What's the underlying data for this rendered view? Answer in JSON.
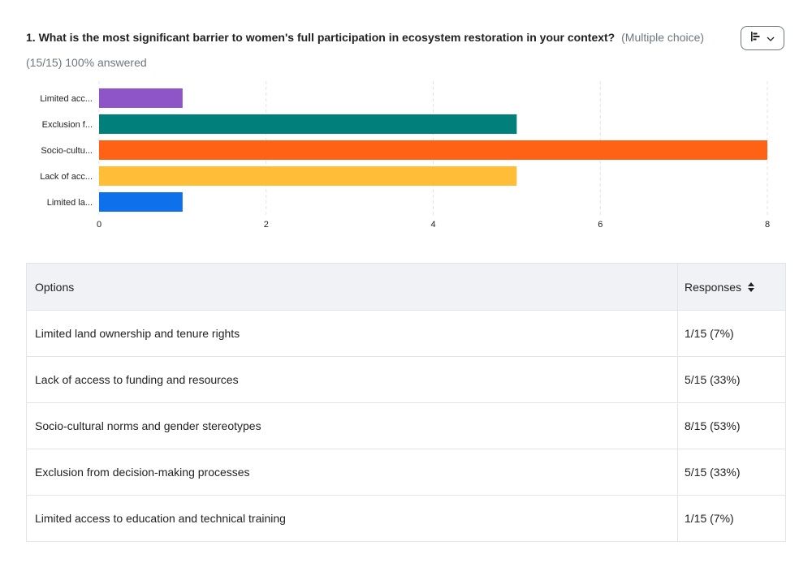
{
  "question": {
    "title": "1. What is the most significant barrier to women's full participation in ecosystem restoration in your context?",
    "type_label": "(Multiple choice)",
    "stats": "(15/15) 100% answered",
    "chart_toggle_icons": [
      "bar-chart-icon",
      "chevron-down-icon"
    ]
  },
  "chart_data": {
    "type": "bar",
    "orientation": "horizontal",
    "categories": [
      "Limited acc...",
      "Exclusion f...",
      "Socio-cultu...",
      "Lack of acc...",
      "Limited la..."
    ],
    "values": [
      1,
      5,
      8,
      5,
      1
    ],
    "colors": [
      "#8e55c9",
      "#007f7b",
      "#ff6215",
      "#ffbd38",
      "#0e71eb"
    ],
    "xlim": [
      0,
      8
    ],
    "xticks": [
      "0",
      "2",
      "4",
      "6",
      "8"
    ],
    "grid": true
  },
  "table": {
    "header": {
      "options": "Options",
      "responses": "Responses"
    },
    "rows": [
      {
        "option": "Limited land ownership and tenure rights",
        "response": "1/15 (7%)"
      },
      {
        "option": "Lack of access to funding and resources",
        "response": "5/15 (33%)"
      },
      {
        "option": "Socio-cultural norms and gender stereotypes",
        "response": "8/15 (53%)"
      },
      {
        "option": "Exclusion from decision-making processes",
        "response": "5/15 (33%)"
      },
      {
        "option": "Limited access to education and technical training",
        "response": "1/15 (7%)"
      }
    ]
  }
}
